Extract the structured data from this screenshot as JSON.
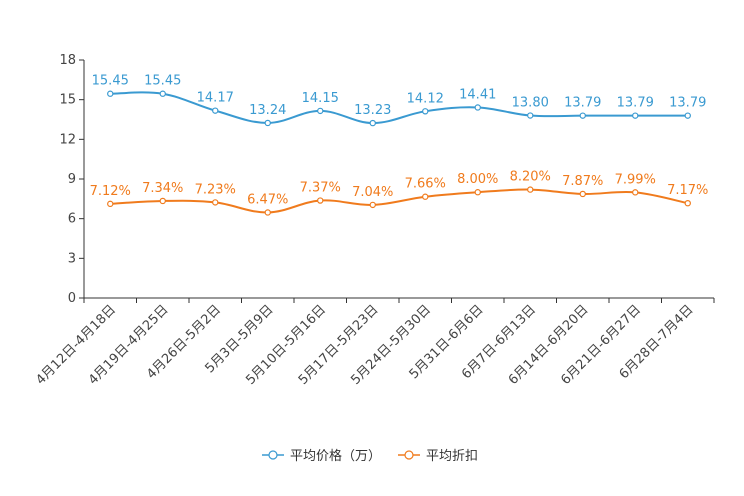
{
  "chart_data": {
    "type": "line",
    "categories": [
      "4月12日-4月18日",
      "4月19日-4月25日",
      "4月26日-5月2日",
      "5月3日-5月9日",
      "5月10日-5月16日",
      "5月17日-5月23日",
      "5月24日-5月30日",
      "5月31日-6月6日",
      "6月7日-6月13日",
      "6月14日-6月20日",
      "6月21日-6月27日",
      "6月28日-7月4日"
    ],
    "series": [
      {
        "name": "平均价格（万）",
        "color": "#3a9ad1",
        "values": [
          15.45,
          15.45,
          14.17,
          13.24,
          14.15,
          13.23,
          14.12,
          14.41,
          13.8,
          13.79,
          13.79,
          13.79
        ],
        "labels": [
          "15.45",
          "15.45",
          "14.17",
          "13.24",
          "14.15",
          "13.23",
          "14.12",
          "14.41",
          "13.80",
          "13.79",
          "13.79",
          "13.79"
        ]
      },
      {
        "name": "平均折扣",
        "color": "#f07b1d",
        "values": [
          7.12,
          7.34,
          7.23,
          6.47,
          7.37,
          7.04,
          7.66,
          8.0,
          8.2,
          7.87,
          7.99,
          7.17
        ],
        "labels": [
          "7.12%",
          "7.34%",
          "7.23%",
          "6.47%",
          "7.37%",
          "7.04%",
          "7.66%",
          "8.00%",
          "8.20%",
          "7.87%",
          "7.99%",
          "7.17%"
        ]
      }
    ],
    "ylim": [
      0,
      18
    ],
    "yticks": [
      "0",
      "3",
      "6",
      "9",
      "12",
      "15",
      "18"
    ],
    "title": "",
    "xlabel": "",
    "ylabel": "",
    "grid": false,
    "legend_position": "bottom-center"
  }
}
